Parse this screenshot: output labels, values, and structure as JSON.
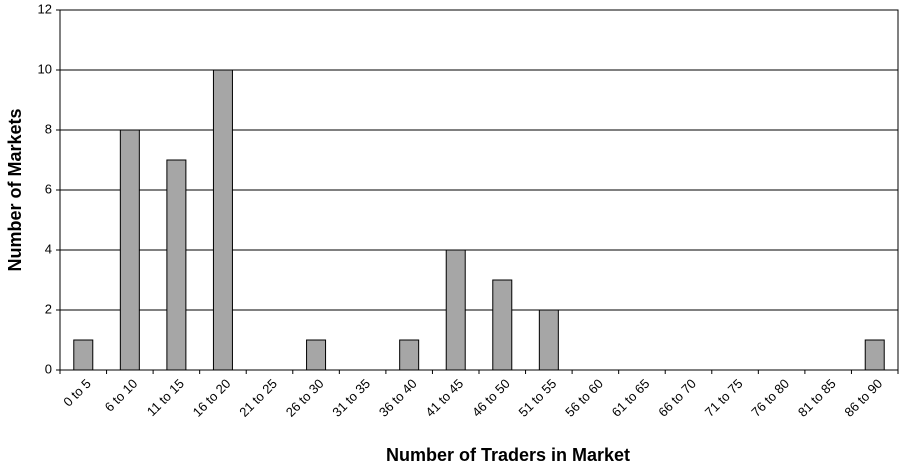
{
  "chart_data": {
    "type": "bar",
    "xlabel": "Number of Traders in Market",
    "ylabel": "Number of Markets",
    "categories": [
      "0 to 5",
      "6 to 10",
      "11 to 15",
      "16 to 20",
      "21 to 25",
      "26 to 30",
      "31 to 35",
      "36 to 40",
      "41 to 45",
      "46 to 50",
      "51 to 55",
      "56 to 60",
      "61 to 65",
      "66 to 70",
      "71 to 75",
      "76 to 80",
      "81 to 85",
      "86 to 90"
    ],
    "values": [
      1,
      8,
      7,
      10,
      0,
      1,
      0,
      1,
      4,
      3,
      2,
      0,
      0,
      0,
      0,
      0,
      0,
      1
    ],
    "color": "#a6a6a6",
    "ylim": [
      0,
      12
    ],
    "yticks": [
      0,
      2,
      4,
      6,
      8,
      10,
      12
    ],
    "grid": true
  }
}
